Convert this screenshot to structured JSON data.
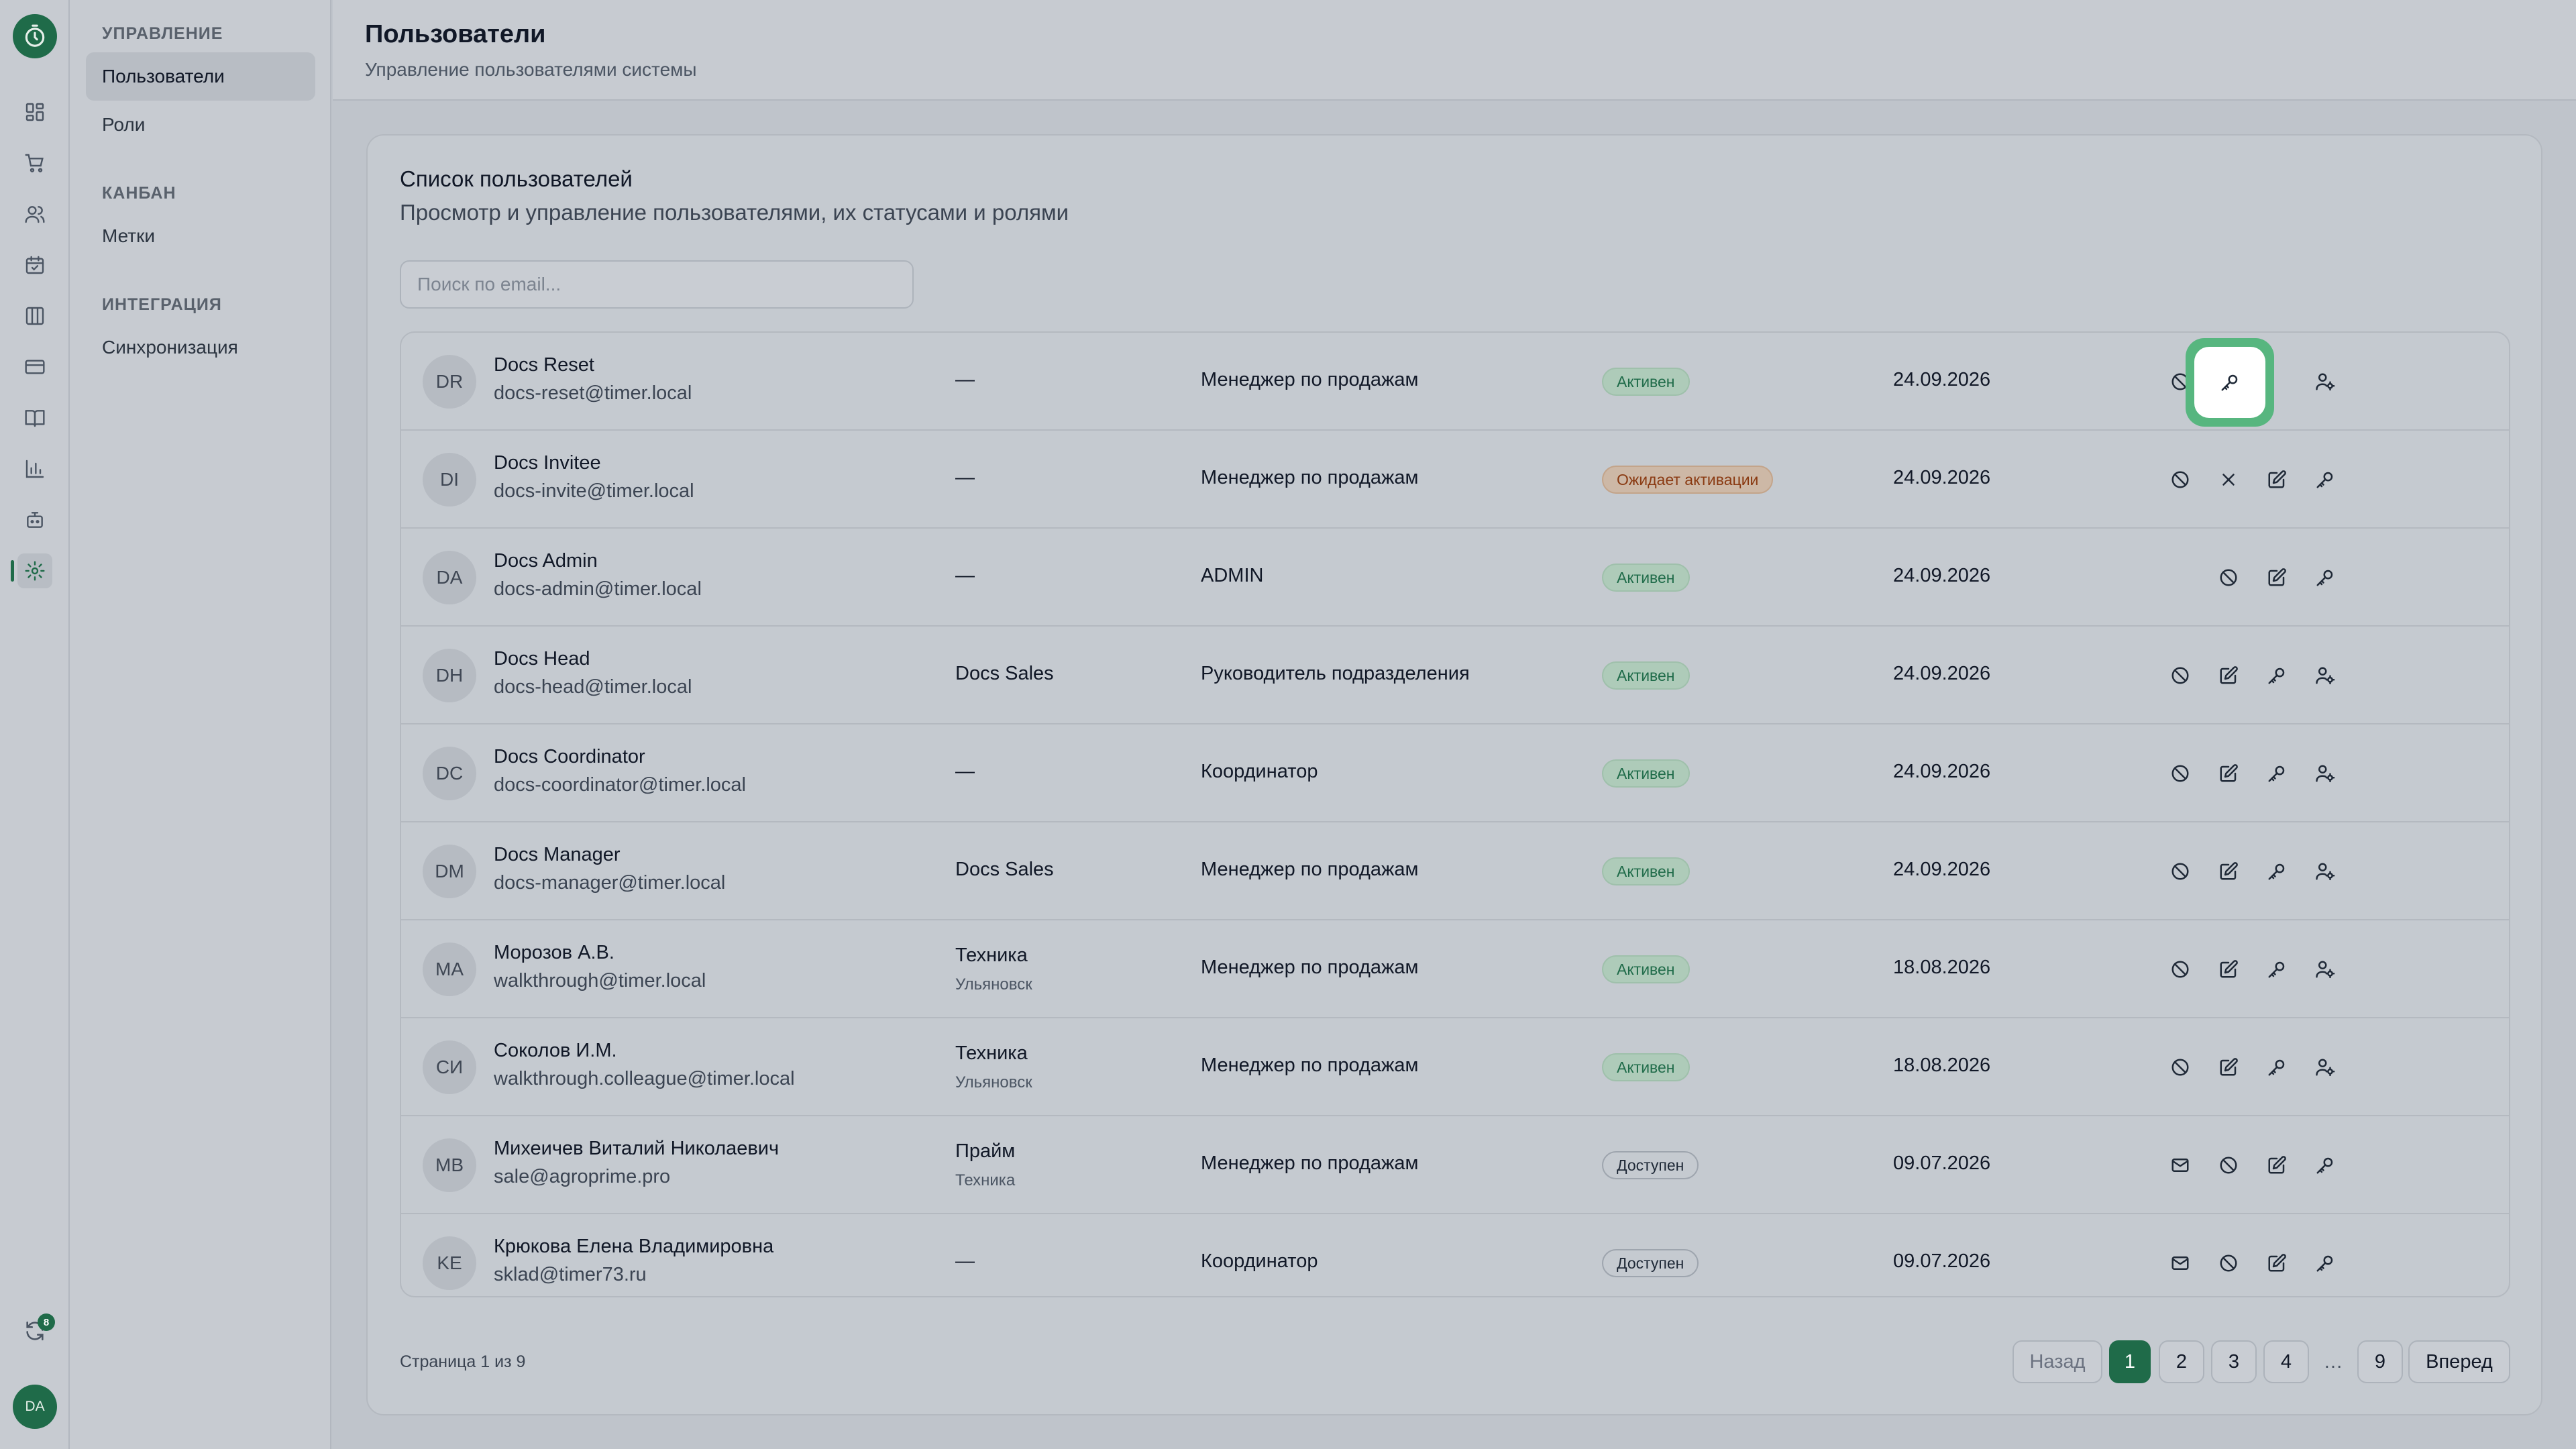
{
  "rail": {
    "avatar": "DA",
    "sync_badge": "8"
  },
  "nav": {
    "sections": [
      {
        "label": "УПРАВЛЕНИЕ",
        "items": [
          "Пользователи",
          "Роли"
        ]
      },
      {
        "label": "КАНБАН",
        "items": [
          "Метки"
        ]
      },
      {
        "label": "ИНТЕГРАЦИЯ",
        "items": [
          "Синхронизация"
        ]
      }
    ]
  },
  "header": {
    "title": "Пользователи",
    "subtitle": "Управление пользователями системы"
  },
  "card": {
    "title": "Список пользователей",
    "description": "Просмотр и управление пользователями, их статусами и ролями",
    "search_placeholder": "Поиск по email..."
  },
  "users": [
    {
      "initials": "DR",
      "name": "Docs Reset",
      "email": "docs-reset@timer.local",
      "dept": "—",
      "dept_sub": "",
      "role": "Менеджер по продажам",
      "status": "Активен",
      "status_kind": "active",
      "date": "24.09.2026",
      "actions": [
        "block",
        "edit",
        "key",
        "assign"
      ]
    },
    {
      "initials": "DI",
      "name": "Docs Invitee",
      "email": "docs-invite@timer.local",
      "dept": "—",
      "dept_sub": "",
      "role": "Менеджер по продажам",
      "status": "Ожидает активации",
      "status_kind": "pending",
      "date": "24.09.2026",
      "actions": [
        "block",
        "close",
        "edit",
        "key"
      ]
    },
    {
      "initials": "DA",
      "name": "Docs Admin",
      "email": "docs-admin@timer.local",
      "dept": "—",
      "dept_sub": "",
      "role": "ADMIN",
      "status": "Активен",
      "status_kind": "active",
      "date": "24.09.2026",
      "actions": [
        "block",
        "edit",
        "key"
      ]
    },
    {
      "initials": "DH",
      "name": "Docs Head",
      "email": "docs-head@timer.local",
      "dept": "Docs Sales",
      "dept_sub": "",
      "role": "Руководитель подразделения",
      "status": "Активен",
      "status_kind": "active",
      "date": "24.09.2026",
      "actions": [
        "block",
        "edit",
        "key",
        "assign"
      ]
    },
    {
      "initials": "DC",
      "name": "Docs Coordinator",
      "email": "docs-coordinator@timer.local",
      "dept": "—",
      "dept_sub": "",
      "role": "Координатор",
      "status": "Активен",
      "status_kind": "active",
      "date": "24.09.2026",
      "actions": [
        "block",
        "edit",
        "key",
        "assign"
      ]
    },
    {
      "initials": "DM",
      "name": "Docs Manager",
      "email": "docs-manager@timer.local",
      "dept": "Docs Sales",
      "dept_sub": "",
      "role": "Менеджер по продажам",
      "status": "Активен",
      "status_kind": "active",
      "date": "24.09.2026",
      "actions": [
        "block",
        "edit",
        "key",
        "assign"
      ]
    },
    {
      "initials": "MA",
      "name": "Морозов А.В.",
      "email": "walkthrough@timer.local",
      "dept": "Техника",
      "dept_sub": "Ульяновск",
      "role": "Менеджер по продажам",
      "status": "Активен",
      "status_kind": "active",
      "date": "18.08.2026",
      "actions": [
        "block",
        "edit",
        "key",
        "assign"
      ]
    },
    {
      "initials": "СИ",
      "name": "Соколов И.М.",
      "email": "walkthrough.colleague@timer.local",
      "dept": "Техника",
      "dept_sub": "Ульяновск",
      "role": "Менеджер по продажам",
      "status": "Активен",
      "status_kind": "active",
      "date": "18.08.2026",
      "actions": [
        "block",
        "edit",
        "key",
        "assign"
      ]
    },
    {
      "initials": "MB",
      "name": "Михеичев Виталий Николаевич",
      "email": "sale@agroprime.pro",
      "dept": "Прайм",
      "dept_sub": "Техника",
      "role": "Менеджер по продажам",
      "status": "Доступен",
      "status_kind": "avail",
      "date": "09.07.2026",
      "actions": [
        "mail",
        "block",
        "edit",
        "key"
      ]
    },
    {
      "initials": "KE",
      "name": "Крюкова Елена Владимировна",
      "email": "sklad@timer73.ru",
      "dept": "—",
      "dept_sub": "",
      "role": "Координатор",
      "status": "Доступен",
      "status_kind": "avail",
      "date": "09.07.2026",
      "actions": [
        "mail",
        "block",
        "edit",
        "key"
      ]
    }
  ],
  "pagination": {
    "info": "Страница 1 из 9",
    "prev": "Назад",
    "next": "Вперед",
    "pages": [
      "1",
      "2",
      "3",
      "4",
      "…",
      "9"
    ],
    "current": "1"
  },
  "colors": {
    "accent": "#1f6b49",
    "highlight": "#57b67f"
  }
}
